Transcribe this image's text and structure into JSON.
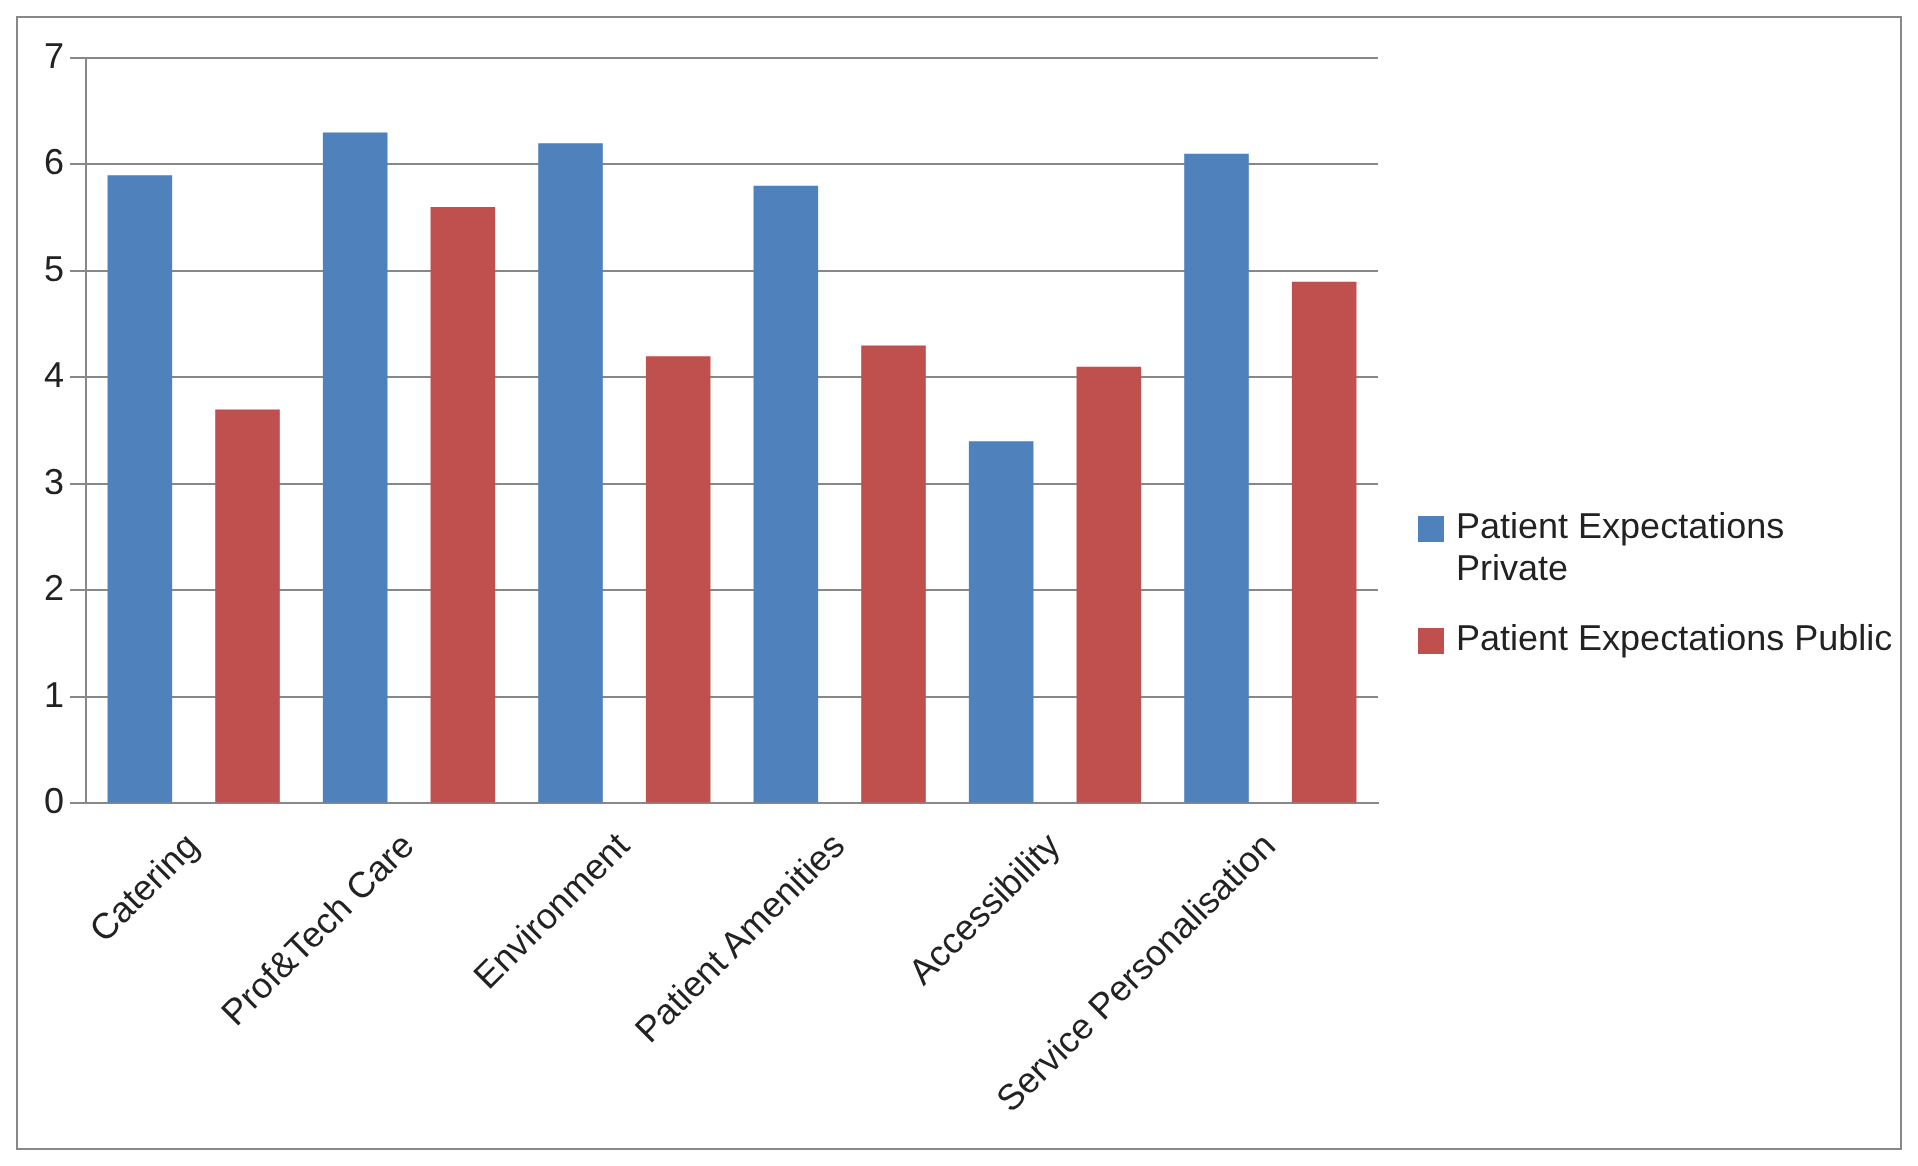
{
  "chart_data": {
    "type": "bar",
    "categories": [
      "Catering",
      "Prof&Tech Care",
      "Environment",
      "Patient Amenities",
      "Accessibility",
      "Service Personalisation"
    ],
    "series": [
      {
        "name": "Patient Expectations Private",
        "color": "#4f81bd",
        "values": [
          5.9,
          6.3,
          6.2,
          5.8,
          3.4,
          6.1
        ]
      },
      {
        "name": "Patient Expectations Public",
        "color": "#c0504d",
        "values": [
          3.7,
          5.6,
          4.2,
          4.3,
          4.1,
          4.9
        ]
      }
    ],
    "ylim": [
      0,
      7
    ],
    "yticks": [
      0,
      1,
      2,
      3,
      4,
      5,
      6,
      7
    ],
    "grid": "y",
    "legend": "right"
  }
}
